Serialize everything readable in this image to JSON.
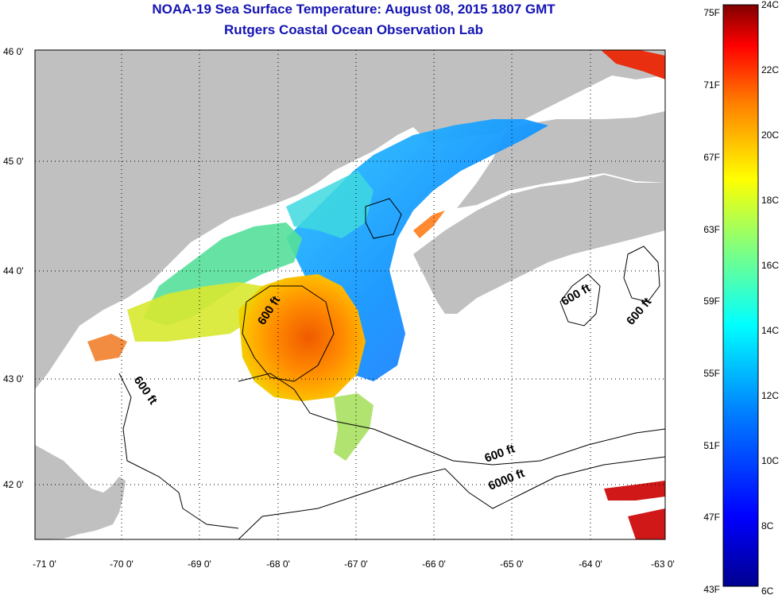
{
  "header": {
    "title": "NOAA-19 Sea Surface Temperature:  August 08, 2015 1807 GMT",
    "subtitle": "Rutgers Coastal Ocean Observation Lab"
  },
  "map": {
    "lat_labels": [
      "46 0'",
      "45 0'",
      "44 0'",
      "43 0'",
      "42 0'"
    ],
    "lon_labels": [
      "-71 0'",
      "-70 0'",
      "-69 0'",
      "-68 0'",
      "-67 0'",
      "-66 0'",
      "-65 0'",
      "-64 0'",
      "-63 0'"
    ],
    "contour_labels": [
      "600 ft",
      "600 ft",
      "600 ft",
      "600 ft",
      "600 ft",
      "6000 ft"
    ],
    "land_color": "#c0c0c0",
    "no_data_color": "#ffffff"
  },
  "colorbar": {
    "fahrenheit_labels": [
      "75F",
      "71F",
      "67F",
      "63F",
      "59F",
      "55F",
      "51F",
      "47F",
      "43F"
    ],
    "celsius_labels": [
      "24C",
      "22C",
      "20C",
      "18C",
      "16C",
      "14C",
      "12C",
      "10C",
      "8C",
      "6C"
    ],
    "scale_colors": [
      "#00008f",
      "#0000ff",
      "#0080ff",
      "#00ffff",
      "#80ff80",
      "#ffff00",
      "#ff8000",
      "#ff0000",
      "#800000"
    ]
  }
}
